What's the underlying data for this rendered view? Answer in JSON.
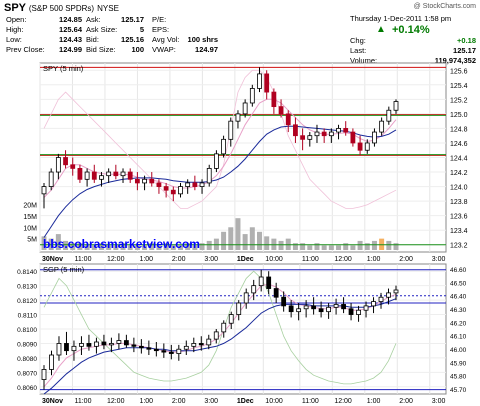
{
  "header": {
    "symbol": "SPY",
    "name": "(S&P 500 SPDRs)",
    "exchange": "NYSE",
    "copyright": "@ StockCharts.com",
    "date_time": "Thursday  1-Dec-2011  1:58 pm",
    "change_pct": "+0.14%",
    "quotes": [
      {
        "label": "Open:",
        "value": "124.85"
      },
      {
        "label": "High:",
        "value": "125.64"
      },
      {
        "label": "Low:",
        "value": "124.43"
      },
      {
        "label": "Prev Close:",
        "value": "124.99"
      },
      {
        "label": "Ask:",
        "value": "125.17"
      },
      {
        "label": "Ask Size:",
        "value": "5"
      },
      {
        "label": "Bid:",
        "value": "125.16"
      },
      {
        "label": "Bid Size:",
        "value": "100"
      },
      {
        "label": "P/E:",
        "value": ""
      },
      {
        "label": "EPS:",
        "value": ""
      },
      {
        "label": "Avg Vol:",
        "value": "100 shrs"
      },
      {
        "label": "VWAP:",
        "value": "124.97"
      },
      {
        "label": "Chg:",
        "value": "+0.18"
      },
      {
        "label": "Last:",
        "value": "125.17"
      },
      {
        "label": "Volume:",
        "value": "119,974,352"
      }
    ]
  },
  "watermark": "bbs.cobrasmarketview.com",
  "colors": {
    "up": "#000000",
    "down": "#b00020",
    "ma_fast": "#e8a0c8",
    "ma_slow": "#1a2a9a",
    "red_line": "#d01010",
    "green_line": "#189018",
    "blue_line": "#2020c0",
    "volume": "#b0b0b0",
    "volume_highlight": "#f5b060",
    "watermark": "#0000ff"
  },
  "chart_data": [
    {
      "type": "candlestick",
      "legend": "SPY (5 min)",
      "x_tick_labels": [
        "30Nov",
        "11:00",
        "12:00",
        "1:00",
        "2:00",
        "3:00",
        "1Dec",
        "10:00",
        "11:00",
        "12:00",
        "1:00",
        "2:00",
        "3:00"
      ],
      "y_tick_labels": [
        "125.6",
        "125.4",
        "125.2",
        "125.0",
        "124.8",
        "124.6",
        "124.4",
        "124.2",
        "124.0",
        "123.8",
        "123.6",
        "123.4",
        "123.2"
      ],
      "ylim": [
        123.1,
        125.7
      ],
      "volume_tick_labels": [
        "20M",
        "15M",
        "10M",
        "5M"
      ],
      "volume_ylim": [
        0,
        22
      ],
      "horizontal_lines": [
        {
          "y": 125.64,
          "color": "red"
        },
        {
          "y": 124.99,
          "color": "red"
        },
        {
          "y": 124.43,
          "color": "red"
        },
        {
          "y": 124.98,
          "color": "green"
        },
        {
          "y": 124.44,
          "color": "green"
        },
        {
          "y": 123.2,
          "color": "green"
        }
      ],
      "candles": [
        [
          123.9,
          124.05,
          123.7,
          124.0
        ],
        [
          124.0,
          124.25,
          123.95,
          124.2
        ],
        [
          124.2,
          124.45,
          124.1,
          124.4
        ],
        [
          124.4,
          124.5,
          124.25,
          124.3
        ],
        [
          124.3,
          124.4,
          124.15,
          124.25
        ],
        [
          124.25,
          124.3,
          124.05,
          124.1
        ],
        [
          124.1,
          124.25,
          124.0,
          124.2
        ],
        [
          124.2,
          124.3,
          124.05,
          124.1
        ],
        [
          124.1,
          124.2,
          124.0,
          124.15
        ],
        [
          124.15,
          124.25,
          124.05,
          124.2
        ],
        [
          124.2,
          124.3,
          124.1,
          124.15
        ],
        [
          124.15,
          124.25,
          124.05,
          124.2
        ],
        [
          124.2,
          124.25,
          124.05,
          124.1
        ],
        [
          124.1,
          124.2,
          123.95,
          124.05
        ],
        [
          124.05,
          124.15,
          123.95,
          124.1
        ],
        [
          124.1,
          124.2,
          124.0,
          124.05
        ],
        [
          124.05,
          124.1,
          123.9,
          124.0
        ],
        [
          124.0,
          124.05,
          123.85,
          123.95
        ],
        [
          123.95,
          124.0,
          123.8,
          123.9
        ],
        [
          123.9,
          124.05,
          123.85,
          124.0
        ],
        [
          124.0,
          124.1,
          123.9,
          124.05
        ],
        [
          124.05,
          124.15,
          123.95,
          124.0
        ],
        [
          124.0,
          124.1,
          123.9,
          124.05
        ],
        [
          124.05,
          124.3,
          124.0,
          124.25
        ],
        [
          124.25,
          124.5,
          124.2,
          124.45
        ],
        [
          124.45,
          124.7,
          124.4,
          124.65
        ],
        [
          124.65,
          124.95,
          124.55,
          124.9
        ],
        [
          124.9,
          125.05,
          124.8,
          125.0
        ],
        [
          125.0,
          125.2,
          124.95,
          125.15
        ],
        [
          125.15,
          125.4,
          125.1,
          125.35
        ],
        [
          125.35,
          125.64,
          125.3,
          125.55
        ],
        [
          125.55,
          125.6,
          125.2,
          125.3
        ],
        [
          125.3,
          125.35,
          125.0,
          125.1
        ],
        [
          125.1,
          125.2,
          124.95,
          125.0
        ],
        [
          125.0,
          125.05,
          124.75,
          124.85
        ],
        [
          124.85,
          124.95,
          124.6,
          124.7
        ],
        [
          124.7,
          124.8,
          124.5,
          124.65
        ],
        [
          124.65,
          124.75,
          124.55,
          124.7
        ],
        [
          124.7,
          124.85,
          124.6,
          124.75
        ],
        [
          124.75,
          124.8,
          124.6,
          124.7
        ],
        [
          124.7,
          124.8,
          124.6,
          124.75
        ],
        [
          124.75,
          124.85,
          124.65,
          124.8
        ],
        [
          124.8,
          124.9,
          124.7,
          124.75
        ],
        [
          124.75,
          124.8,
          124.55,
          124.6
        ],
        [
          124.6,
          124.7,
          124.43,
          124.5
        ],
        [
          124.5,
          124.65,
          124.45,
          124.6
        ],
        [
          124.6,
          124.8,
          124.55,
          124.75
        ],
        [
          124.75,
          124.95,
          124.7,
          124.9
        ],
        [
          124.9,
          125.1,
          124.85,
          125.05
        ],
        [
          125.05,
          125.2,
          125.0,
          125.17
        ]
      ],
      "volumes": [
        6,
        5,
        7,
        4,
        3,
        3,
        2,
        2,
        3,
        2,
        2,
        3,
        2,
        2,
        2,
        3,
        2,
        3,
        2,
        2,
        3,
        2,
        3,
        4,
        5,
        8,
        10,
        14,
        7,
        10,
        8,
        6,
        5,
        4,
        5,
        3,
        3,
        2,
        3,
        2,
        2,
        2,
        3,
        2,
        4,
        3,
        4,
        5,
        4,
        3
      ],
      "volume_highlight_index": 47,
      "ma_fast": [
        123.85,
        123.95,
        124.1,
        124.25,
        124.3,
        124.3,
        124.25,
        124.2,
        124.18,
        124.17,
        124.17,
        124.17,
        124.16,
        124.13,
        124.1,
        124.09,
        124.07,
        124.04,
        124.0,
        123.98,
        123.98,
        124.0,
        124.02,
        124.07,
        124.15,
        124.28,
        124.45,
        124.65,
        124.85,
        125.0,
        125.15,
        125.2,
        125.2,
        125.15,
        125.05,
        124.95,
        124.85,
        124.78,
        124.74,
        124.72,
        124.72,
        124.73,
        124.74,
        124.72,
        124.66,
        124.62,
        124.64,
        124.7,
        124.8,
        124.92
      ],
      "ma_slow": [
        123.3,
        123.45,
        123.6,
        123.72,
        123.82,
        123.9,
        123.96,
        124.0,
        124.03,
        124.06,
        124.08,
        124.1,
        124.11,
        124.12,
        124.12,
        124.12,
        124.11,
        124.1,
        124.08,
        124.07,
        124.06,
        124.06,
        124.06,
        124.07,
        124.09,
        124.13,
        124.2,
        124.28,
        124.38,
        124.5,
        124.62,
        124.72,
        124.78,
        124.82,
        124.83,
        124.83,
        124.82,
        124.81,
        124.8,
        124.79,
        124.78,
        124.77,
        124.76,
        124.74,
        124.71,
        124.69,
        124.68,
        124.69,
        124.72,
        124.78
      ],
      "extra_line": [
        124.8,
        125.0,
        125.2,
        125.3,
        125.2,
        125.1,
        125.0,
        124.9,
        124.8,
        124.7,
        124.6,
        124.5,
        124.4,
        124.3,
        124.2,
        124.1,
        124.0,
        123.9,
        123.8,
        123.7,
        123.7,
        123.75,
        123.8,
        123.9,
        124.0,
        124.3,
        124.8,
        125.3,
        125.5,
        125.6,
        125.6,
        125.5,
        125.3,
        125.0,
        124.7,
        124.5,
        124.3,
        124.1,
        124.0,
        123.9,
        123.8,
        123.75,
        123.7,
        123.7,
        123.72,
        123.75,
        123.8,
        123.85,
        123.9,
        123.95
      ]
    },
    {
      "type": "candlestick",
      "legend": "SGP (5 min)",
      "x_tick_labels": [
        "30Nov",
        "11:00",
        "12:00",
        "1:00",
        "2:00",
        "3:00",
        "1Dec",
        "10:00",
        "11:00",
        "12:00",
        "1:00",
        "2:00",
        "3:00"
      ],
      "y_tick_labels_left": [
        "0.8140",
        "0.8130",
        "0.8120",
        "0.8110",
        "0.8100",
        "0.8090",
        "0.8080",
        "0.8070",
        "0.8060"
      ],
      "y_tick_labels_right": [
        "46.60",
        "46.50",
        "46.40",
        "46.30",
        "46.20",
        "46.10",
        "46.00",
        "45.90",
        "45.80",
        "45.70"
      ],
      "ylim": [
        0.8055,
        0.8145
      ],
      "horizontal_lines": [
        {
          "y": 0.8141,
          "color": "blue"
        },
        {
          "y": 0.8118,
          "color": "blue"
        },
        {
          "y": 0.8058,
          "color": "blue"
        },
        {
          "y": 0.8123,
          "color": "blue",
          "dashed": true
        }
      ],
      "candles": [
        [
          0.8065,
          0.8075,
          0.8058,
          0.8072
        ],
        [
          0.8072,
          0.8085,
          0.8068,
          0.8082
        ],
        [
          0.8082,
          0.8095,
          0.8078,
          0.809
        ],
        [
          0.809,
          0.8098,
          0.8082,
          0.8085
        ],
        [
          0.8085,
          0.8092,
          0.8078,
          0.8088
        ],
        [
          0.8088,
          0.8095,
          0.8082,
          0.809
        ],
        [
          0.809,
          0.8096,
          0.8085,
          0.8088
        ],
        [
          0.8088,
          0.8094,
          0.8083,
          0.8091
        ],
        [
          0.8091,
          0.8096,
          0.8086,
          0.8089
        ],
        [
          0.8089,
          0.8094,
          0.8084,
          0.809
        ],
        [
          0.809,
          0.8097,
          0.8086,
          0.8092
        ],
        [
          0.8092,
          0.8096,
          0.8087,
          0.8089
        ],
        [
          0.8089,
          0.8094,
          0.8084,
          0.8088
        ],
        [
          0.8088,
          0.8093,
          0.8083,
          0.8087
        ],
        [
          0.8087,
          0.8092,
          0.8082,
          0.8086
        ],
        [
          0.8086,
          0.8091,
          0.8081,
          0.8085
        ],
        [
          0.8085,
          0.809,
          0.808,
          0.8084
        ],
        [
          0.8084,
          0.8089,
          0.8079,
          0.8083
        ],
        [
          0.8083,
          0.8089,
          0.8078,
          0.8086
        ],
        [
          0.8086,
          0.8092,
          0.8082,
          0.8088
        ],
        [
          0.8088,
          0.8094,
          0.8084,
          0.809
        ],
        [
          0.809,
          0.8095,
          0.8085,
          0.8089
        ],
        [
          0.8089,
          0.8096,
          0.8086,
          0.8093
        ],
        [
          0.8093,
          0.81,
          0.809,
          0.8098
        ],
        [
          0.8098,
          0.8106,
          0.8094,
          0.8104
        ],
        [
          0.8104,
          0.8112,
          0.81,
          0.811
        ],
        [
          0.811,
          0.812,
          0.8106,
          0.8118
        ],
        [
          0.8118,
          0.8128,
          0.8114,
          0.8125
        ],
        [
          0.8125,
          0.8134,
          0.812,
          0.813
        ],
        [
          0.813,
          0.8141,
          0.8126,
          0.8136
        ],
        [
          0.8136,
          0.814,
          0.8124,
          0.8128
        ],
        [
          0.8128,
          0.8132,
          0.8118,
          0.8122
        ],
        [
          0.8122,
          0.8126,
          0.8112,
          0.8116
        ],
        [
          0.8116,
          0.812,
          0.8108,
          0.8112
        ],
        [
          0.8112,
          0.8118,
          0.8106,
          0.8114
        ],
        [
          0.8114,
          0.812,
          0.8108,
          0.8116
        ],
        [
          0.8116,
          0.8122,
          0.811,
          0.8114
        ],
        [
          0.8114,
          0.8119,
          0.8108,
          0.8112
        ],
        [
          0.8112,
          0.8118,
          0.8107,
          0.8115
        ],
        [
          0.8115,
          0.8121,
          0.811,
          0.8117
        ],
        [
          0.8117,
          0.8122,
          0.8111,
          0.8114
        ],
        [
          0.8114,
          0.8118,
          0.8106,
          0.811
        ],
        [
          0.811,
          0.8116,
          0.8105,
          0.8113
        ],
        [
          0.8113,
          0.8119,
          0.8108,
          0.8116
        ],
        [
          0.8116,
          0.8122,
          0.8111,
          0.8119
        ],
        [
          0.8119,
          0.8125,
          0.8114,
          0.8122
        ],
        [
          0.8122,
          0.8128,
          0.8117,
          0.8125
        ],
        [
          0.8125,
          0.813,
          0.812,
          0.8127
        ]
      ],
      "ma_fast": [
        0.806,
        0.8066,
        0.8074,
        0.808,
        0.8083,
        0.8086,
        0.8087,
        0.8088,
        0.8089,
        0.8089,
        0.809,
        0.809,
        0.8089,
        0.8088,
        0.8087,
        0.8086,
        0.8085,
        0.8084,
        0.8084,
        0.8085,
        0.8087,
        0.8088,
        0.809,
        0.8093,
        0.8098,
        0.8104,
        0.8111,
        0.8118,
        0.8124,
        0.813,
        0.8131,
        0.8129,
        0.8125,
        0.812,
        0.8117,
        0.8116,
        0.8115,
        0.8114,
        0.8114,
        0.8115,
        0.8115,
        0.8113,
        0.8113,
        0.8114,
        0.8116,
        0.8119,
        0.8122,
        0.8124
      ],
      "ma_slow": [
        0.8055,
        0.8059,
        0.8064,
        0.8069,
        0.8073,
        0.8077,
        0.808,
        0.8082,
        0.8084,
        0.8085,
        0.8086,
        0.8087,
        0.8087,
        0.8087,
        0.8087,
        0.8086,
        0.8086,
        0.8085,
        0.8085,
        0.8085,
        0.8085,
        0.8086,
        0.8087,
        0.8088,
        0.809,
        0.8093,
        0.8097,
        0.8101,
        0.8106,
        0.8111,
        0.8114,
        0.8116,
        0.8117,
        0.8117,
        0.8117,
        0.8117,
        0.8116,
        0.8116,
        0.8116,
        0.8116,
        0.8116,
        0.8115,
        0.8115,
        0.8115,
        0.8116,
        0.8117,
        0.8119,
        0.8121
      ],
      "secondary_line": [
        0.8115,
        0.8125,
        0.8135,
        0.813,
        0.812,
        0.811,
        0.81,
        0.8095,
        0.809,
        0.8085,
        0.808,
        0.8075,
        0.807,
        0.8068,
        0.8066,
        0.8065,
        0.8064,
        0.8064,
        0.8065,
        0.8066,
        0.8068,
        0.807,
        0.8075,
        0.8085,
        0.81,
        0.8115,
        0.8125,
        0.8135,
        0.814,
        0.8135,
        0.8125,
        0.811,
        0.8095,
        0.8085,
        0.8078,
        0.8072,
        0.8068,
        0.8066,
        0.8064,
        0.8063,
        0.8062,
        0.8062,
        0.8063,
        0.8064,
        0.8066,
        0.807,
        0.8078,
        0.809
      ]
    }
  ]
}
